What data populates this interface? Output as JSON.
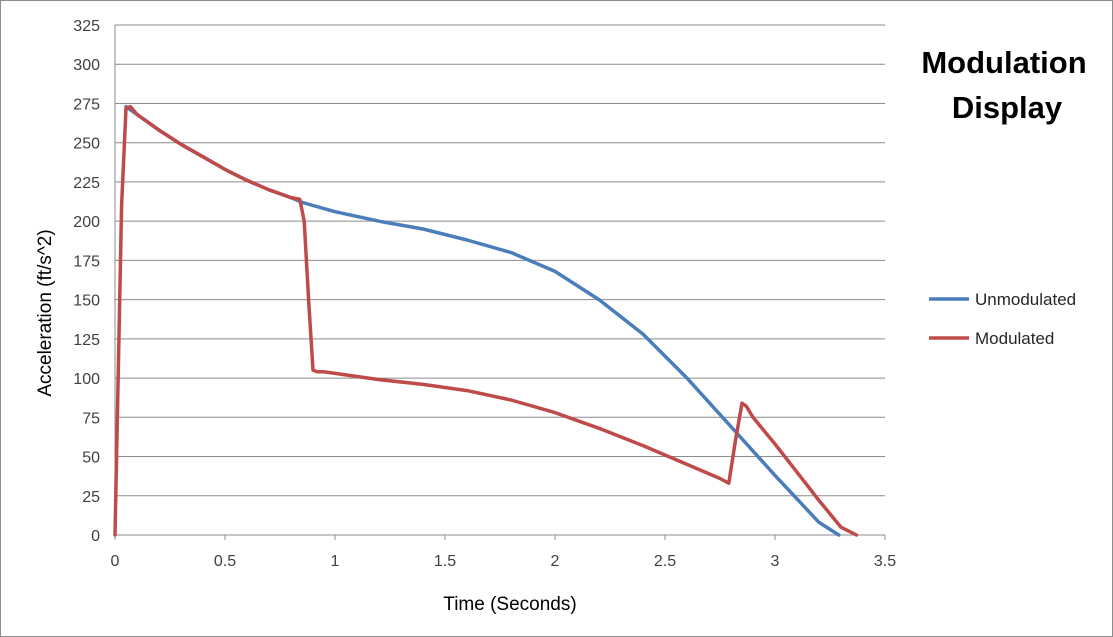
{
  "chart_data": {
    "type": "line",
    "title_lines": [
      "Modulation",
      "Display"
    ],
    "xlabel": "Time (Seconds)",
    "ylabel": "Acceleration (ft/s^2)",
    "xlim": [
      0,
      3.5
    ],
    "ylim": [
      0,
      325
    ],
    "x_ticks": [
      0,
      0.5,
      1,
      1.5,
      2,
      2.5,
      3,
      3.5
    ],
    "x_tick_labels": [
      "0",
      "0.5",
      "1",
      "1.5",
      "2",
      "2.5",
      "3",
      "3.5"
    ],
    "y_ticks": [
      0,
      25,
      50,
      75,
      100,
      125,
      150,
      175,
      200,
      225,
      250,
      275,
      300,
      325
    ],
    "y_tick_labels": [
      "0",
      "25",
      "50",
      "75",
      "100",
      "125",
      "150",
      "175",
      "200",
      "225",
      "250",
      "275",
      "300",
      "325"
    ],
    "grid": "horizontal",
    "legend_position": "right",
    "series": [
      {
        "name": "Unmodulated",
        "color": "#4a7ebb",
        "x": [
          0.05,
          0.1,
          0.2,
          0.3,
          0.4,
          0.5,
          0.6,
          0.7,
          0.8,
          0.85,
          0.9,
          1.0,
          1.2,
          1.4,
          1.6,
          1.8,
          2.0,
          2.2,
          2.4,
          2.6,
          2.8,
          3.0,
          3.2,
          3.29
        ],
        "y": [
          273,
          268,
          258,
          249,
          241,
          233,
          226,
          220,
          215,
          212,
          210,
          206,
          200,
          195,
          188,
          180,
          168,
          150,
          128,
          100,
          69,
          38,
          8,
          0
        ]
      },
      {
        "name": "Modulated",
        "color": "#be4b48",
        "x": [
          0,
          0.03,
          0.05,
          0.07,
          0.1,
          0.2,
          0.3,
          0.4,
          0.5,
          0.6,
          0.7,
          0.8,
          0.84,
          0.86,
          0.88,
          0.9,
          0.92,
          0.95,
          1.0,
          1.2,
          1.4,
          1.6,
          1.8,
          2.0,
          2.2,
          2.4,
          2.6,
          2.75,
          2.79,
          2.82,
          2.85,
          2.87,
          2.9,
          3.0,
          3.1,
          3.2,
          3.3,
          3.37
        ],
        "y": [
          0,
          210,
          272,
          273,
          268,
          258,
          249,
          241,
          233,
          226,
          220,
          215,
          214,
          200,
          150,
          105,
          104,
          104,
          103,
          99,
          96,
          92,
          86,
          78,
          68,
          57,
          45,
          36,
          33,
          60,
          84,
          82,
          75,
          58,
          40,
          22,
          5,
          0
        ]
      }
    ]
  }
}
